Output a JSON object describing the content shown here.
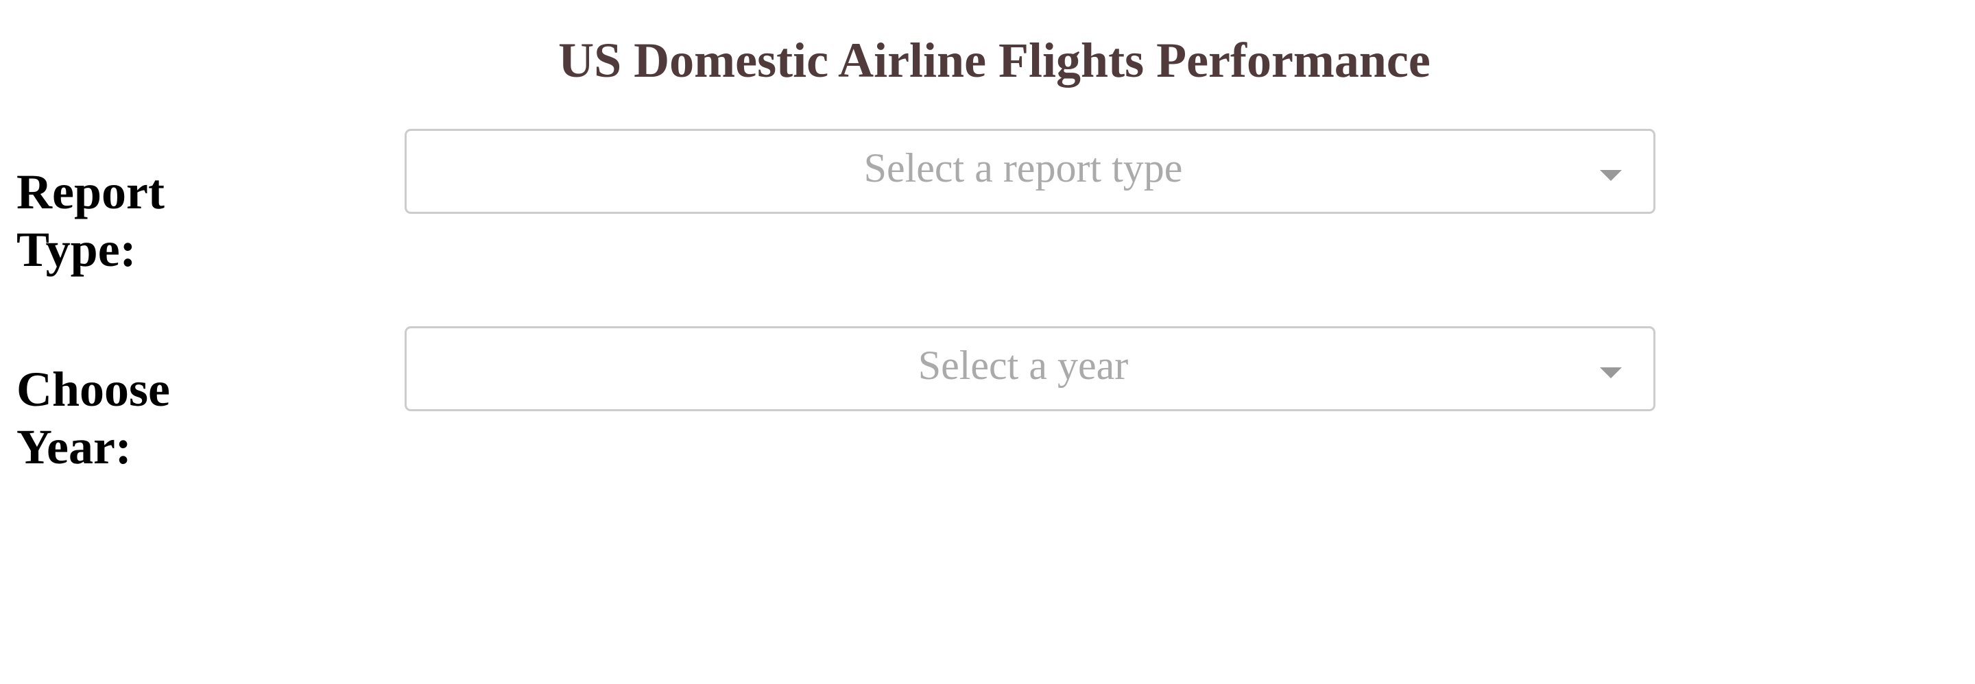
{
  "header": {
    "title": "US Domestic Airline Flights Performance"
  },
  "form": {
    "report_type": {
      "label": "Report\nType:",
      "placeholder": "Select a report type",
      "arrow_icon": "caret-down-icon"
    },
    "year": {
      "label": "Choose\nYear:",
      "placeholder": "Select a year",
      "arrow_icon": "caret-down-icon"
    }
  },
  "colors": {
    "title": "#503A3B",
    "label": "#000000",
    "placeholder": "#AAAAAA",
    "border": "#CCCCCC",
    "arrow": "#999999"
  }
}
